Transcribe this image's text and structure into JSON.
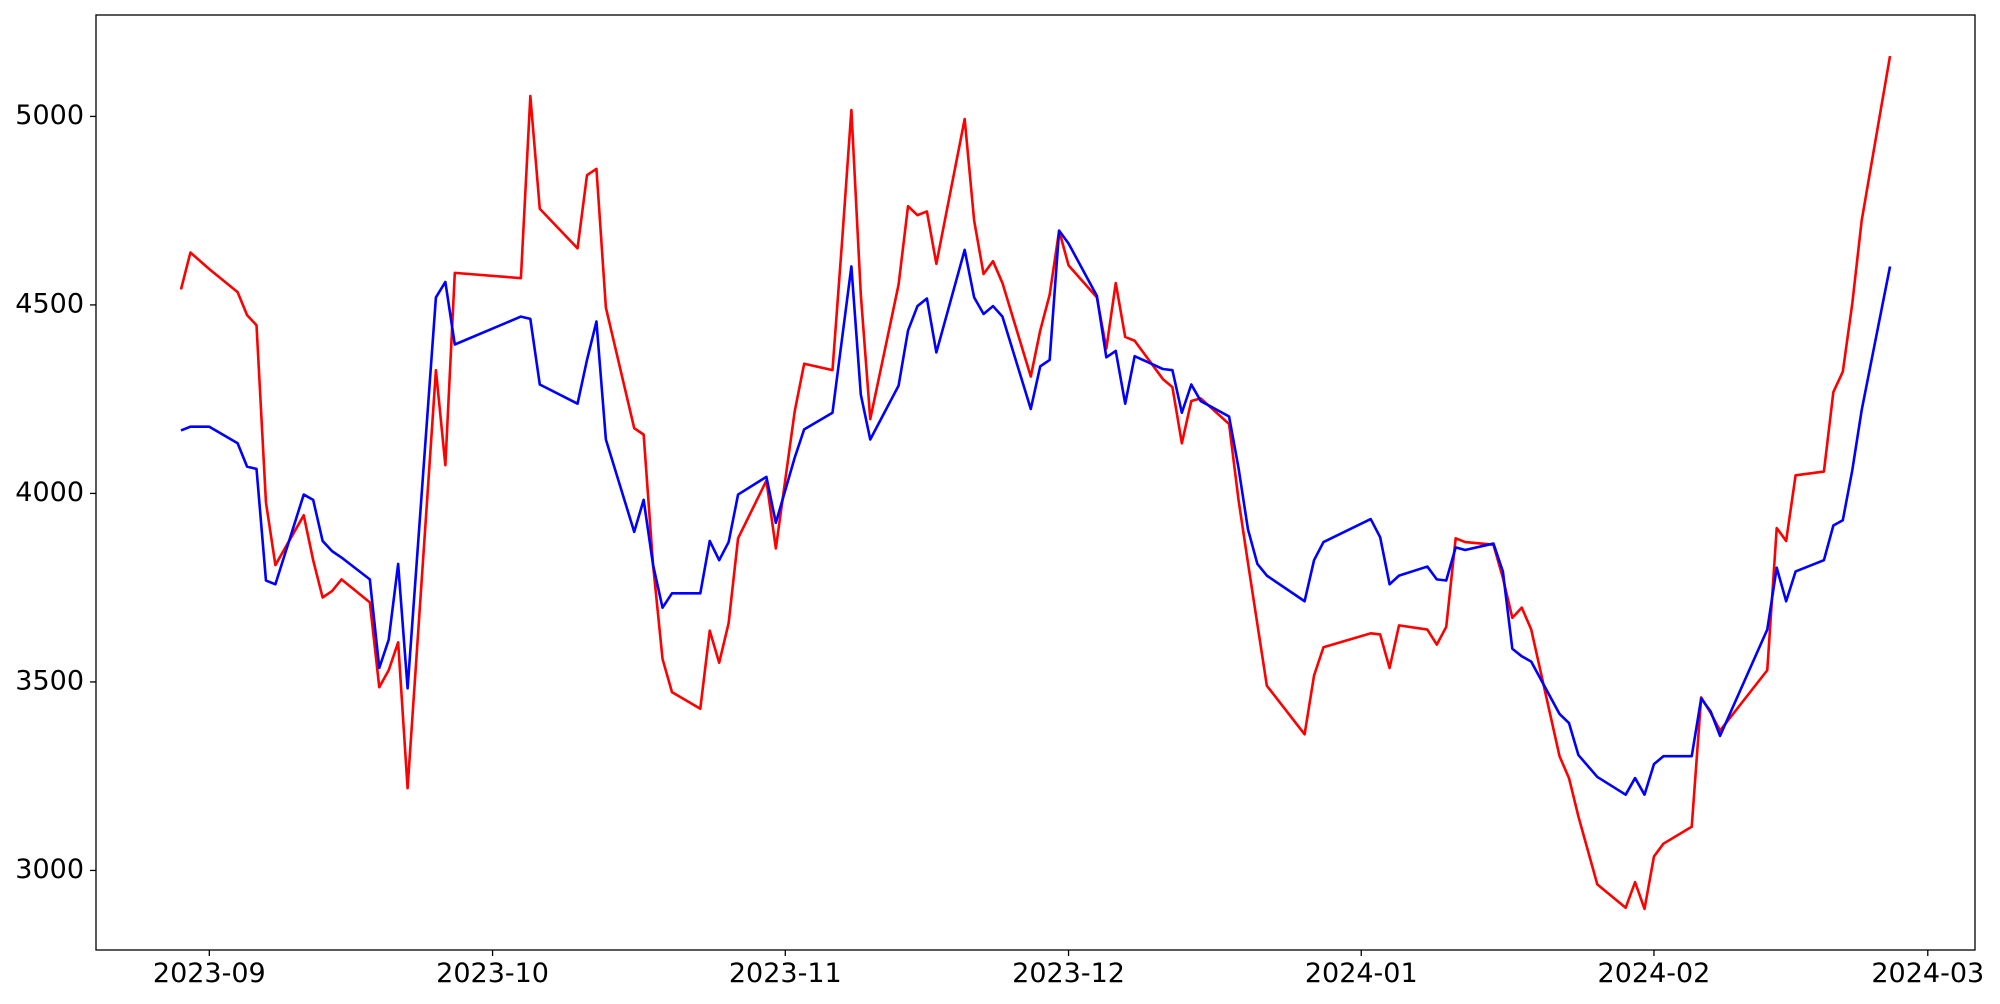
{
  "chart_data": {
    "type": "line",
    "x": [
      "2023-08-29",
      "2023-08-30",
      "2023-09-01",
      "2023-09-04",
      "2023-09-05",
      "2023-09-06",
      "2023-09-07",
      "2023-09-08",
      "2023-09-11",
      "2023-09-12",
      "2023-09-13",
      "2023-09-14",
      "2023-09-15",
      "2023-09-18",
      "2023-09-19",
      "2023-09-20",
      "2023-09-21",
      "2023-09-22",
      "2023-09-25",
      "2023-09-26",
      "2023-09-27",
      "2023-10-04",
      "2023-10-05",
      "2023-10-06",
      "2023-10-10",
      "2023-10-11",
      "2023-10-12",
      "2023-10-13",
      "2023-10-16",
      "2023-10-17",
      "2023-10-18",
      "2023-10-19",
      "2023-10-20",
      "2023-10-23",
      "2023-10-24",
      "2023-10-25",
      "2023-10-26",
      "2023-10-27",
      "2023-10-30",
      "2023-10-31",
      "2023-11-02",
      "2023-11-03",
      "2023-11-06",
      "2023-11-07",
      "2023-11-08",
      "2023-11-09",
      "2023-11-10",
      "2023-11-13",
      "2023-11-14",
      "2023-11-15",
      "2023-11-16",
      "2023-11-17",
      "2023-11-20",
      "2023-11-21",
      "2023-11-22",
      "2023-11-23",
      "2023-11-24",
      "2023-11-27",
      "2023-11-28",
      "2023-11-29",
      "2023-11-30",
      "2023-12-01",
      "2023-12-04",
      "2023-12-05",
      "2023-12-06",
      "2023-12-07",
      "2023-12-08",
      "2023-12-11",
      "2023-12-12",
      "2023-12-13",
      "2023-12-14",
      "2023-12-15",
      "2023-12-18",
      "2023-12-19",
      "2023-12-20",
      "2023-12-21",
      "2023-12-22",
      "2023-12-26",
      "2023-12-27",
      "2023-12-28",
      "2024-01-02",
      "2024-01-03",
      "2024-01-04",
      "2024-01-05",
      "2024-01-08",
      "2024-01-09",
      "2024-01-10",
      "2024-01-11",
      "2024-01-12",
      "2024-01-15",
      "2024-01-16",
      "2024-01-17",
      "2024-01-18",
      "2024-01-19",
      "2024-01-22",
      "2024-01-23",
      "2024-01-24",
      "2024-01-26",
      "2024-01-29",
      "2024-01-30",
      "2024-01-31",
      "2024-02-01",
      "2024-02-02",
      "2024-02-05",
      "2024-02-06",
      "2024-02-07",
      "2024-02-08",
      "2024-02-13",
      "2024-02-14",
      "2024-02-15",
      "2024-02-16",
      "2024-02-19",
      "2024-02-20",
      "2024-02-21",
      "2024-02-22",
      "2024-02-23",
      "2024-02-26"
    ],
    "series": [
      {
        "color": "#ff0000",
        "values": [
          4541,
          4639,
          4595,
          4534,
          4473,
          4446,
          3976,
          3810,
          3942,
          3823,
          3724,
          3741,
          3772,
          3711,
          3486,
          3531,
          3605,
          3218,
          4327,
          4075,
          4585,
          4571,
          5054,
          4755,
          4650,
          4844,
          4861,
          4493,
          4173,
          4156,
          3810,
          3561,
          3473,
          3429,
          3636,
          3551,
          3656,
          3881,
          4034,
          3854,
          4218,
          4344,
          4327,
          4663,
          5017,
          4527,
          4197,
          4554,
          4762,
          4738,
          4748,
          4609,
          4993,
          4724,
          4582,
          4616,
          4558,
          4310,
          4432,
          4527,
          4697,
          4605,
          4520,
          4384,
          4558,
          4415,
          4405,
          4303,
          4282,
          4133,
          4245,
          4252,
          4184,
          3983,
          3816,
          3653,
          3490,
          3361,
          3517,
          3592,
          3629,
          3626,
          3537,
          3650,
          3639,
          3599,
          3646,
          3881,
          3871,
          3864,
          3776,
          3670,
          3697,
          3639,
          3303,
          3245,
          3143,
          2963,
          2901,
          2969,
          2898,
          3037,
          3071,
          3116,
          3459,
          3418,
          3371,
          3531,
          3908,
          3874,
          4048,
          4058,
          4269,
          4323,
          4503,
          4724,
          5160
        ]
      },
      {
        "color": "#0000ff",
        "values": [
          4167,
          4177,
          4177,
          4133,
          4071,
          4065,
          3769,
          3759,
          3997,
          3983,
          3874,
          3847,
          3830,
          3772,
          3537,
          3612,
          3813,
          3483,
          4520,
          4561,
          4395,
          4469,
          4463,
          4289,
          4238,
          4354,
          4456,
          4143,
          3898,
          3983,
          3810,
          3697,
          3735,
          3735,
          3874,
          3823,
          3871,
          3997,
          4044,
          3922,
          4095,
          4170,
          4214,
          4408,
          4602,
          4262,
          4143,
          4286,
          4432,
          4497,
          4517,
          4374,
          4646,
          4520,
          4476,
          4497,
          4469,
          4224,
          4337,
          4354,
          4697,
          4663,
          4524,
          4361,
          4378,
          4238,
          4364,
          4330,
          4327,
          4214,
          4289,
          4245,
          4204,
          4068,
          3905,
          3813,
          3782,
          3714,
          3823,
          3871,
          3932,
          3884,
          3759,
          3782,
          3806,
          3772,
          3769,
          3857,
          3850,
          3867,
          3793,
          3588,
          3568,
          3554,
          3415,
          3391,
          3306,
          3248,
          3201,
          3245,
          3201,
          3282,
          3303,
          3303,
          3456,
          3422,
          3357,
          3639,
          3803,
          3714,
          3793,
          3823,
          3915,
          3929,
          4061,
          4221,
          4602
        ]
      }
    ],
    "xlim": [
      "2023-08-20",
      "2024-03-06"
    ],
    "xticks": [
      {
        "value": "2023-09-01",
        "label": "2023-09"
      },
      {
        "value": "2023-10-01",
        "label": "2023-10"
      },
      {
        "value": "2023-11-01",
        "label": "2023-11"
      },
      {
        "value": "2023-12-01",
        "label": "2023-12"
      },
      {
        "value": "2024-01-01",
        "label": "2024-01"
      },
      {
        "value": "2024-02-01",
        "label": "2024-02"
      },
      {
        "value": "2024-03-01",
        "label": "2024-03"
      }
    ],
    "ylim": [
      2789,
      5269
    ],
    "yticks": [
      3000,
      3500,
      4000,
      4500,
      5000
    ],
    "grid": false
  }
}
